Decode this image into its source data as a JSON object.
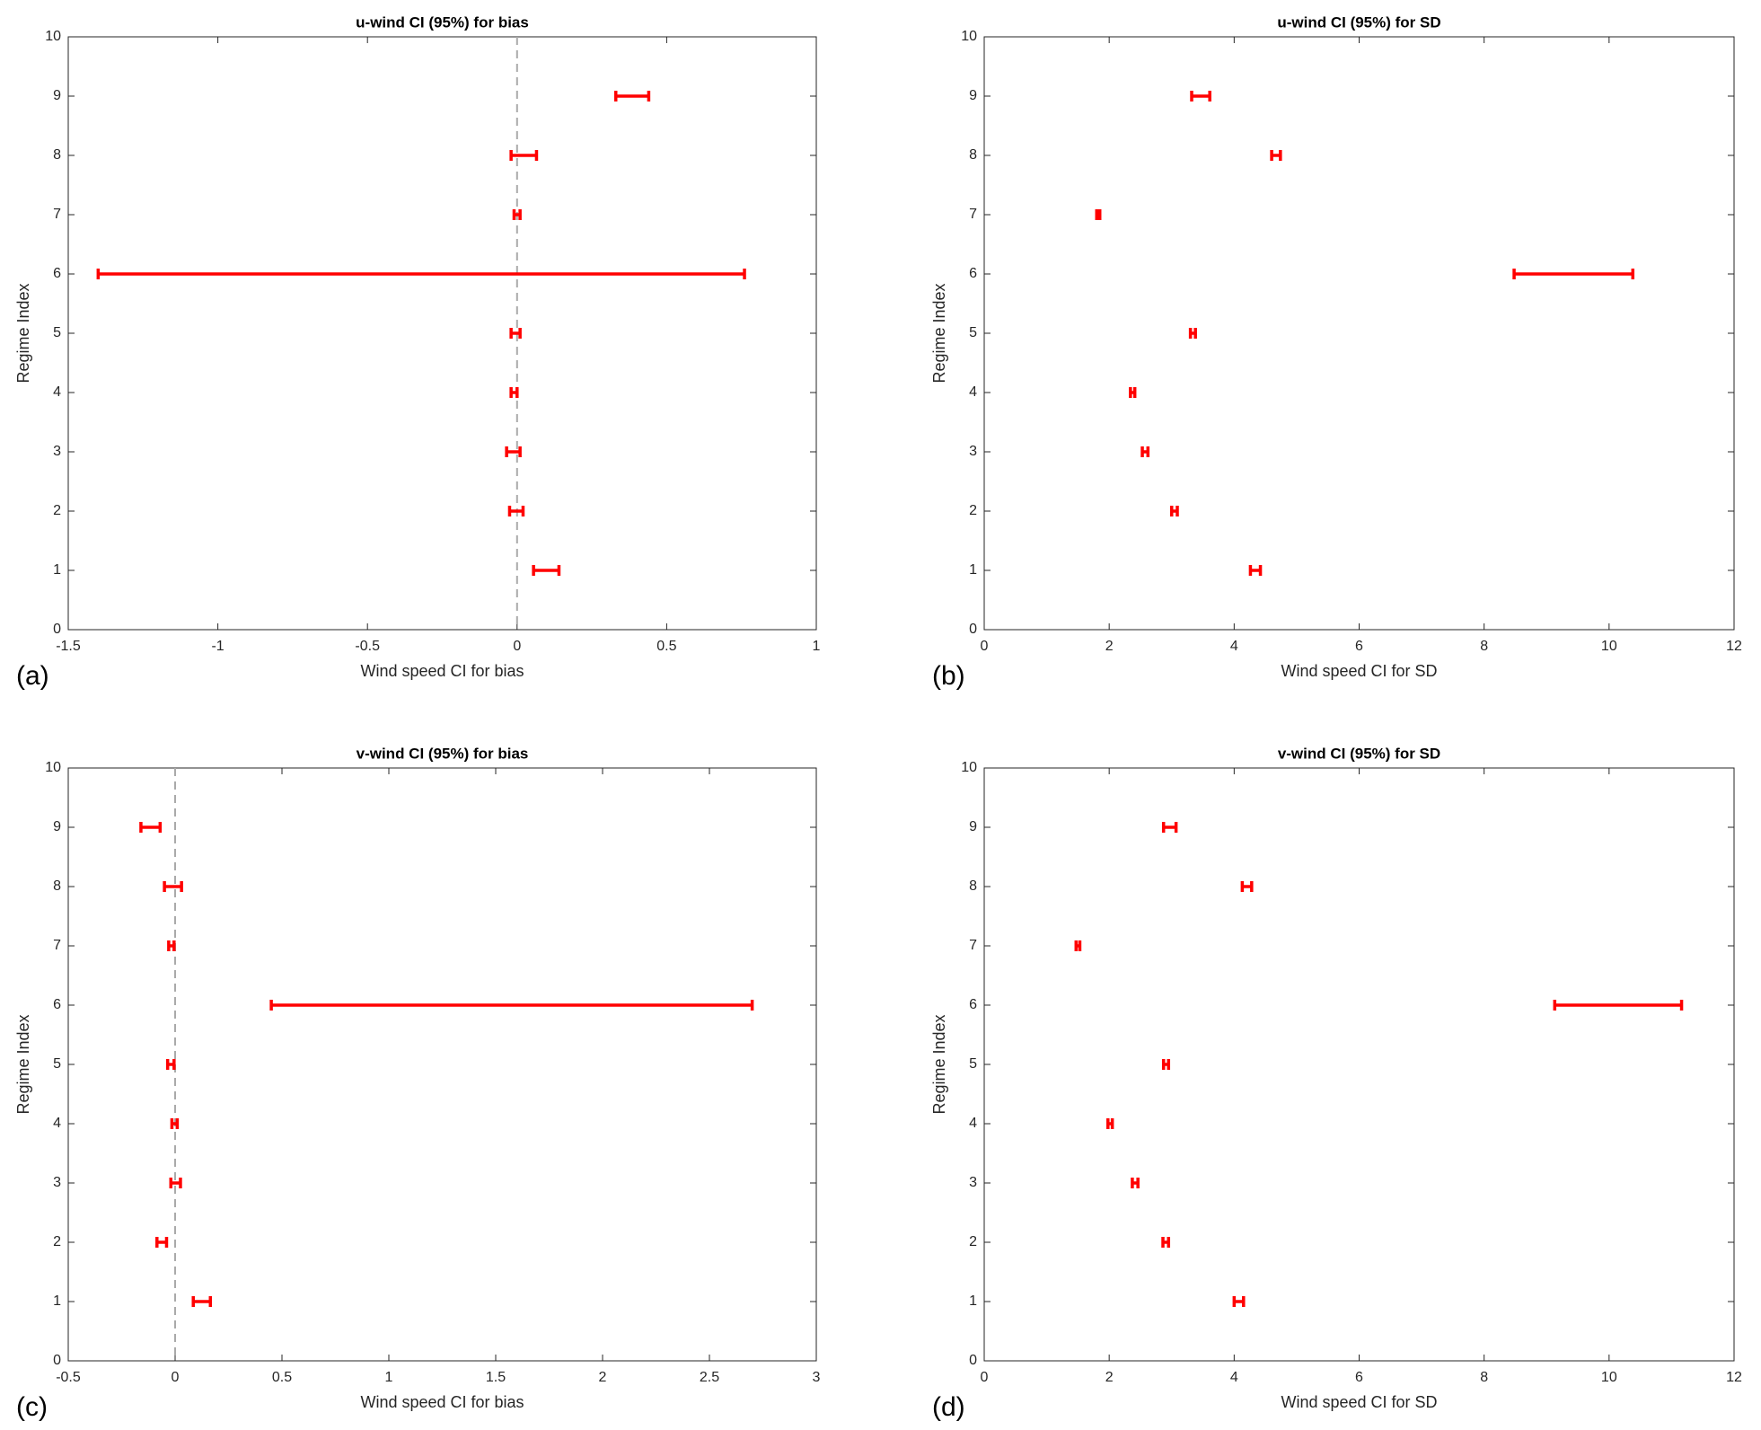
{
  "chart_data": [
    {
      "type": "errorbar",
      "title": "u-wind CI (95%) for bias",
      "xlabel": "Wind speed CI for bias",
      "ylabel": "Regime Index",
      "panel_label": "(a)",
      "y": [
        1,
        2,
        3,
        4,
        5,
        6,
        7,
        8,
        9
      ],
      "low": [
        0.055,
        -0.025,
        -0.035,
        -0.02,
        -0.02,
        -1.4,
        -0.01,
        -0.02,
        0.33
      ],
      "high": [
        0.14,
        0.02,
        0.01,
        0.0,
        0.01,
        0.76,
        0.01,
        0.065,
        0.44
      ],
      "color": "#ff0000",
      "xlim": [
        -1.5,
        1
      ],
      "xticks": [
        -1.5,
        -1,
        -0.5,
        0,
        0.5,
        1
      ],
      "ylim": [
        0,
        10
      ],
      "yticks": [
        0,
        1,
        2,
        3,
        4,
        5,
        6,
        7,
        8,
        9,
        10
      ],
      "reference_line": 0
    },
    {
      "type": "errorbar",
      "title": "u-wind CI (95%) for SD",
      "xlabel": "Wind speed CI for SD",
      "ylabel": "Regime Index",
      "panel_label": "(b)",
      "y": [
        1,
        2,
        3,
        4,
        5,
        6,
        7,
        8,
        9
      ],
      "low": [
        4.26,
        3.0,
        2.53,
        2.34,
        3.3,
        8.48,
        1.8,
        4.6,
        3.32
      ],
      "high": [
        4.42,
        3.09,
        2.62,
        2.41,
        3.38,
        10.38,
        1.85,
        4.74,
        3.61
      ],
      "color": "#ff0000",
      "xlim": [
        0,
        12
      ],
      "xticks": [
        0,
        2,
        4,
        6,
        8,
        10,
        12
      ],
      "ylim": [
        0,
        10
      ],
      "yticks": [
        0,
        1,
        2,
        3,
        4,
        5,
        6,
        7,
        8,
        9,
        10
      ]
    },
    {
      "type": "errorbar",
      "title": "v-wind CI (95%) for bias",
      "xlabel": "Wind speed CI for bias",
      "ylabel": "Regime Index",
      "panel_label": "(c)",
      "y": [
        1,
        2,
        3,
        4,
        5,
        6,
        7,
        8,
        9
      ],
      "low": [
        0.085,
        -0.085,
        -0.02,
        -0.015,
        -0.035,
        0.45,
        -0.03,
        -0.05,
        -0.16
      ],
      "high": [
        0.165,
        -0.04,
        0.025,
        0.01,
        -0.005,
        2.7,
        -0.005,
        0.03,
        -0.07
      ],
      "color": "#ff0000",
      "xlim": [
        -0.5,
        3
      ],
      "xticks": [
        -0.5,
        0,
        0.5,
        1,
        1.5,
        2,
        2.5,
        3
      ],
      "ylim": [
        0,
        10
      ],
      "yticks": [
        0,
        1,
        2,
        3,
        4,
        5,
        6,
        7,
        8,
        9,
        10
      ],
      "reference_line": 0
    },
    {
      "type": "errorbar",
      "title": "v-wind CI (95%) for SD",
      "xlabel": "Wind speed CI for SD",
      "ylabel": "Regime Index",
      "panel_label": "(d)",
      "y": [
        1,
        2,
        3,
        4,
        5,
        6,
        7,
        8,
        9
      ],
      "low": [
        4.0,
        2.86,
        2.37,
        1.98,
        2.87,
        9.13,
        1.47,
        4.13,
        2.87
      ],
      "high": [
        4.15,
        2.95,
        2.46,
        2.05,
        2.95,
        11.16,
        1.53,
        4.28,
        3.07
      ],
      "color": "#ff0000",
      "xlim": [
        0,
        12
      ],
      "xticks": [
        0,
        2,
        4,
        6,
        8,
        10,
        12
      ],
      "ylim": [
        0,
        10
      ],
      "yticks": [
        0,
        1,
        2,
        3,
        4,
        5,
        6,
        7,
        8,
        9,
        10
      ]
    }
  ]
}
